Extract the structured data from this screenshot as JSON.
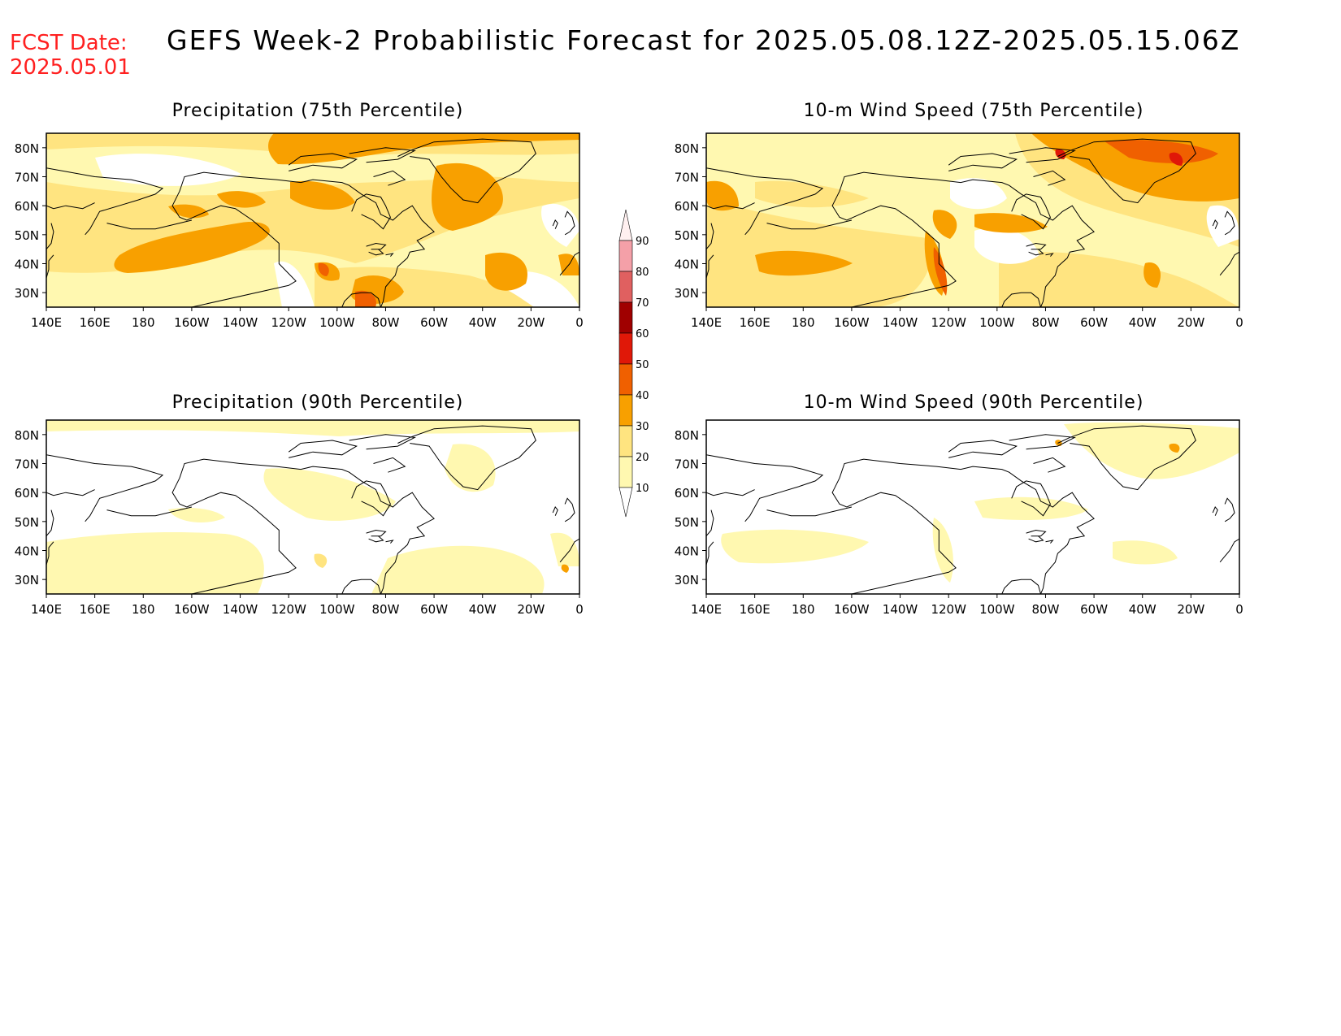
{
  "header": {
    "fcst_label": "FCST Date:",
    "fcst_date": "2025.05.01",
    "title": "GEFS Week-2 Probabilistic Forecast for 2025.05.08.12Z-2025.05.15.06Z"
  },
  "panels": [
    {
      "title": "Precipitation (75th Percentile)"
    },
    {
      "title": "10-m Wind Speed (75th Percentile)"
    },
    {
      "title": "Precipitation (90th Percentile)"
    },
    {
      "title": "10-m Wind Speed (90th Percentile)"
    }
  ],
  "axes": {
    "lon_labels": [
      "140E",
      "160E",
      "180",
      "160W",
      "140W",
      "120W",
      "100W",
      "80W",
      "60W",
      "40W",
      "20W",
      "0"
    ],
    "lat_labels": [
      "80N",
      "70N",
      "60N",
      "50N",
      "40N",
      "30N"
    ],
    "lon_range": [
      140,
      360
    ],
    "lat_range": [
      25,
      85
    ]
  },
  "colorbar": {
    "levels": [
      "90",
      "80",
      "70",
      "60",
      "50",
      "40",
      "30",
      "20",
      "10"
    ],
    "colors": [
      "#fff0f0",
      "#f4a0a8",
      "#e06060",
      "#a00000",
      "#e01808",
      "#f06000",
      "#f8a000",
      "#ffe480",
      "#fff8b0"
    ]
  }
}
